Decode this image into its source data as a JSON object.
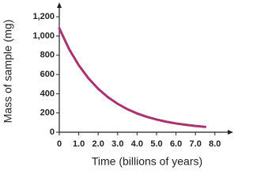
{
  "chart_data": {
    "type": "line",
    "x_label": "Time (billions of years)",
    "y_label": "Mass of sample (mg)",
    "x": [
      0,
      0.5,
      1,
      1.5,
      2,
      2.5,
      3,
      3.5,
      4,
      4.5,
      5,
      5.5,
      6,
      6.5,
      7,
      7.5
    ],
    "series": [
      {
        "color": "#a83570",
        "values": [
          1080,
          866,
          696,
          560,
          451,
          364,
          295,
          239,
          195,
          160,
          132,
          109,
          91,
          77,
          65,
          56
        ]
      }
    ],
    "xlim": [
      0,
      8.7
    ],
    "ylim": [
      0,
      1300
    ],
    "xticks": [
      0,
      {
        "value": 1,
        "label": "1.0"
      },
      {
        "value": 2,
        "label": "2.0"
      },
      {
        "value": 3,
        "label": "3.0"
      },
      {
        "value": 4,
        "label": "4.0"
      },
      {
        "value": 5,
        "label": "5.0"
      },
      {
        "value": 6,
        "label": "6.0"
      },
      {
        "value": 7,
        "label": "7.0"
      },
      {
        "value": 8,
        "label": "8.0"
      }
    ],
    "yticks": [
      0,
      200,
      400,
      600,
      800,
      {
        "value": 1000,
        "label": "1,000"
      },
      {
        "value": 1200,
        "label": "1,200"
      }
    ]
  }
}
